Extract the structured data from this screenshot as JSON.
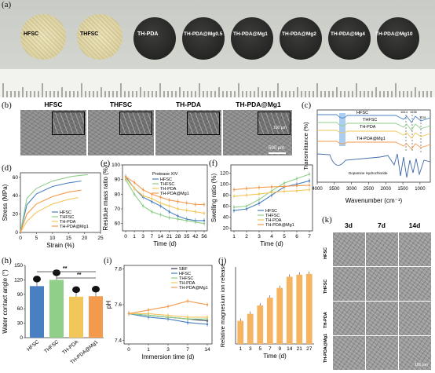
{
  "panels": {
    "a": "(a)",
    "b": "(b)",
    "c": "(c)",
    "d": "(d)",
    "e": "(e)",
    "f": "(f)",
    "h": "(h)",
    "i": "(i)",
    "j": "(j)",
    "k": "(k)"
  },
  "discs": [
    "HFSC",
    "THFSC",
    "TH-PDA",
    "TH-PDA@Mg0.5",
    "TH-PDA@Mg1",
    "TH-PDA@Mg2",
    "TH-PDA@Mg4",
    "TH-PDA@Mg10"
  ],
  "sem": {
    "titles": [
      "HFSC",
      "THFSC",
      "TH-PDA",
      "TH-PDA@Mg1"
    ],
    "scale_small": "100 μm",
    "scale_large": "500 μm"
  },
  "k": {
    "cols": [
      "3d",
      "7d",
      "14d"
    ],
    "rows": [
      "HFSC",
      "THFSC",
      "TH-PDA",
      "TH-PDA@Mg1"
    ],
    "scale": "100 μm"
  },
  "colors": {
    "HFSC": "#4a7fc1",
    "THFSC": "#8fcf8a",
    "TH-PDA": "#f2c75a",
    "TH-PDA@Mg1": "#f39a4c",
    "SBF": "#2a3550"
  },
  "chart_data": [
    {
      "id": "c",
      "type": "line",
      "xlabel": "Wavenumber (cm⁻¹)",
      "ylabel": "Transmittance (%)",
      "xticks": [
        4000,
        3500,
        3000,
        2500,
        2000,
        1500,
        1000
      ],
      "xlim": [
        4000,
        700
      ],
      "series": [
        {
          "name": "HFSC"
        },
        {
          "name": "THFSC"
        },
        {
          "name": "TH-PDA"
        },
        {
          "name": "TH-PDA@Mg1"
        },
        {
          "name": "Dopamine Hydrochloride"
        }
      ],
      "annotations": [
        "1614",
        "1535",
        "1231"
      ]
    },
    {
      "id": "d",
      "type": "line",
      "xlabel": "Strain (%)",
      "ylabel": "Stress (MPa)",
      "xticks": [
        0,
        5,
        10,
        15,
        20,
        25
      ],
      "yticks": [
        0,
        20,
        40,
        60
      ],
      "xlim": [
        0,
        25
      ],
      "ylim": [
        0,
        65
      ],
      "series": [
        {
          "name": "HFSC",
          "x": [
            0,
            2,
            5,
            10,
            15,
            19
          ],
          "y": [
            0,
            30,
            42,
            50,
            54,
            56
          ]
        },
        {
          "name": "THFSC",
          "x": [
            0,
            2,
            5,
            10,
            16,
            21
          ],
          "y": [
            0,
            37,
            48,
            56,
            61,
            63
          ]
        },
        {
          "name": "TH-PDA",
          "x": [
            0,
            2,
            5,
            10,
            15,
            18
          ],
          "y": [
            0,
            12,
            22,
            31,
            36,
            38
          ]
        },
        {
          "name": "TH-PDA@Mg1",
          "x": [
            0,
            2,
            5,
            10,
            15,
            19
          ],
          "y": [
            0,
            20,
            31,
            39,
            44,
            46
          ]
        }
      ]
    },
    {
      "id": "e",
      "type": "line",
      "xlabel": "Time (d)",
      "ylabel": "Residue mass ratio (%)",
      "title": "Protease XIV",
      "xticks": [
        0,
        1,
        3,
        7,
        14,
        21,
        28,
        35,
        42,
        56
      ],
      "yticks": [
        60,
        70,
        80,
        90,
        100
      ],
      "ylim": [
        55,
        100
      ],
      "series": [
        {
          "name": "HFSC",
          "y": [
            92,
            84,
            78,
            75,
            72,
            68,
            65,
            63,
            62,
            62
          ]
        },
        {
          "name": "THFSC",
          "y": [
            90,
            80,
            72,
            68,
            66,
            64,
            63,
            62,
            61,
            60
          ]
        },
        {
          "name": "TH-PDA",
          "y": [
            91,
            84,
            79,
            77,
            74,
            72,
            70,
            69,
            68,
            67
          ]
        },
        {
          "name": "TH-PDA@Mg1",
          "y": [
            92,
            88,
            83,
            80,
            78,
            76,
            75,
            74,
            73,
            73
          ]
        }
      ]
    },
    {
      "id": "f",
      "type": "line",
      "xlabel": "Time (d)",
      "ylabel": "Swelling ratio (%)",
      "xticks": [
        1,
        2,
        3,
        4,
        5,
        6,
        7
      ],
      "yticks": [
        20,
        40,
        60,
        80,
        100,
        120
      ],
      "ylim": [
        15,
        135
      ],
      "series": [
        {
          "name": "HFSC",
          "y": [
            52,
            55,
            65,
            80,
            95,
            100,
            106
          ]
        },
        {
          "name": "THFSC",
          "y": [
            58,
            60,
            72,
            88,
            102,
            110,
            118
          ]
        },
        {
          "name": "TH-PDA",
          "y": [
            78,
            80,
            82,
            85,
            87,
            88,
            90
          ]
        },
        {
          "name": "TH-PDA@Mg1",
          "y": [
            90,
            92,
            94,
            95,
            96,
            97,
            98
          ]
        }
      ]
    },
    {
      "id": "h",
      "type": "bar",
      "ylabel": "Water contact angle (°)",
      "categories": [
        "HFSC",
        "THFSC",
        "TH-PDA",
        "TH-PDA@Mg1"
      ],
      "values": [
        107,
        120,
        85,
        86
      ],
      "yticks": [
        0,
        30,
        60,
        90,
        120,
        150
      ],
      "ylim": [
        0,
        150
      ],
      "significance": [
        "**",
        "**"
      ]
    },
    {
      "id": "i",
      "type": "line",
      "xlabel": "Immersion time (d)",
      "ylabel": "pH",
      "xticks": [
        0,
        1,
        3,
        7,
        14
      ],
      "yticks": [
        7.4,
        7.6,
        7.8
      ],
      "ylim": [
        7.38,
        7.82
      ],
      "series": [
        {
          "name": "SBF",
          "y": [
            7.55,
            7.54,
            7.53,
            7.52,
            7.51
          ]
        },
        {
          "name": "HFSC",
          "y": [
            7.55,
            7.53,
            7.52,
            7.5,
            7.49
          ]
        },
        {
          "name": "THFSC",
          "y": [
            7.55,
            7.54,
            7.53,
            7.52,
            7.52
          ]
        },
        {
          "name": "TH-PDA",
          "y": [
            7.55,
            7.55,
            7.54,
            7.53,
            7.53
          ]
        },
        {
          "name": "TH-PDA@Mg1",
          "y": [
            7.55,
            7.57,
            7.59,
            7.62,
            7.6
          ]
        }
      ]
    },
    {
      "id": "j",
      "type": "bar",
      "xlabel": "Time (d)",
      "ylabel": "Relative magnesium ion release",
      "categories": [
        "1",
        "3",
        "5",
        "7",
        "9",
        "14",
        "21",
        "27"
      ],
      "values": [
        33,
        43,
        55,
        66,
        80,
        96,
        99,
        100
      ],
      "ylim": [
        0,
        110
      ]
    }
  ]
}
